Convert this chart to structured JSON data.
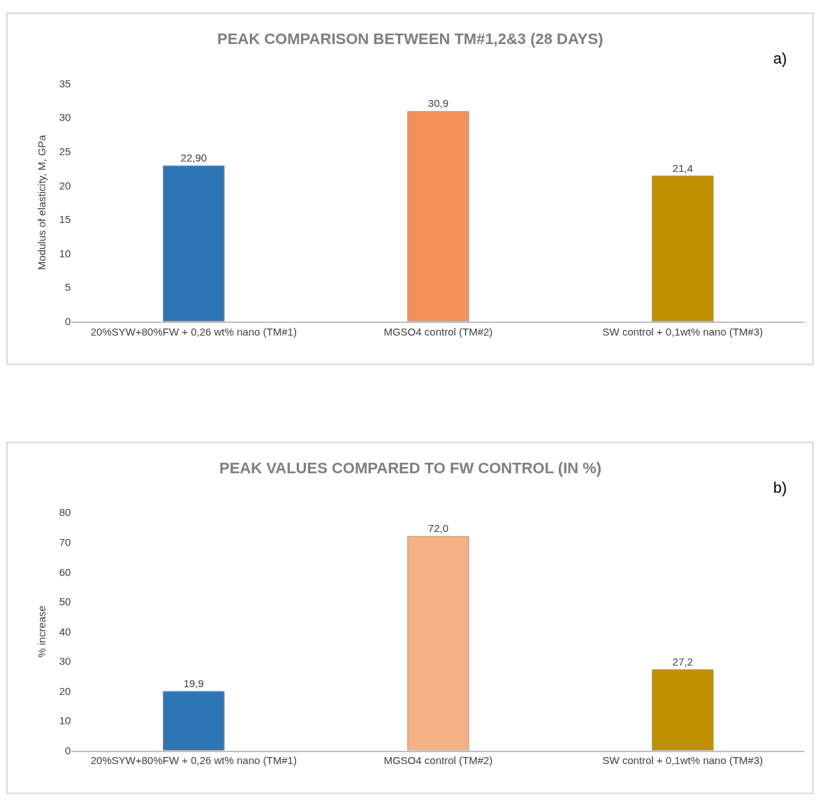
{
  "chart_data": [
    {
      "type": "bar",
      "title": "PEAK COMPARISON BETWEEN TM#1,2&3 (28 DAYS)",
      "ylabel": "Modulus of elasticity, M, GPa",
      "categories": [
        "20%SYW+80%FW + 0,26 wt% nano (TM#1)",
        "MGSO4 control (TM#2)",
        "SW control + 0,1wt% nano (TM#3)"
      ],
      "values": [
        22.9,
        30.9,
        21.4
      ],
      "value_labels": [
        "22,90",
        "30,9",
        "21,4"
      ],
      "colors": [
        "#2e75b6",
        "#f4915a",
        "#bf8f00"
      ],
      "ylim": [
        0,
        35
      ],
      "yticks": [
        0,
        5,
        10,
        15,
        20,
        25,
        30,
        35
      ],
      "grid": false,
      "annotations": [
        "a)"
      ]
    },
    {
      "type": "bar",
      "title": "PEAK VALUES COMPARED TO FW CONTROL (IN %)",
      "ylabel": "% increase",
      "categories": [
        "20%SYW+80%FW + 0,26 wt% nano (TM#1)",
        "MGSO4 control (TM#2)",
        "SW control + 0,1wt% nano (TM#3)"
      ],
      "values": [
        19.9,
        72.0,
        27.2
      ],
      "value_labels": [
        "19,9",
        "72,0",
        "27,2"
      ],
      "colors": [
        "#2e75b6",
        "#f4b183",
        "#bf8f00"
      ],
      "ylim": [
        0,
        80
      ],
      "yticks": [
        0,
        10,
        20,
        30,
        40,
        50,
        60,
        70,
        80
      ],
      "grid": false,
      "annotations": [
        "b)"
      ]
    }
  ]
}
